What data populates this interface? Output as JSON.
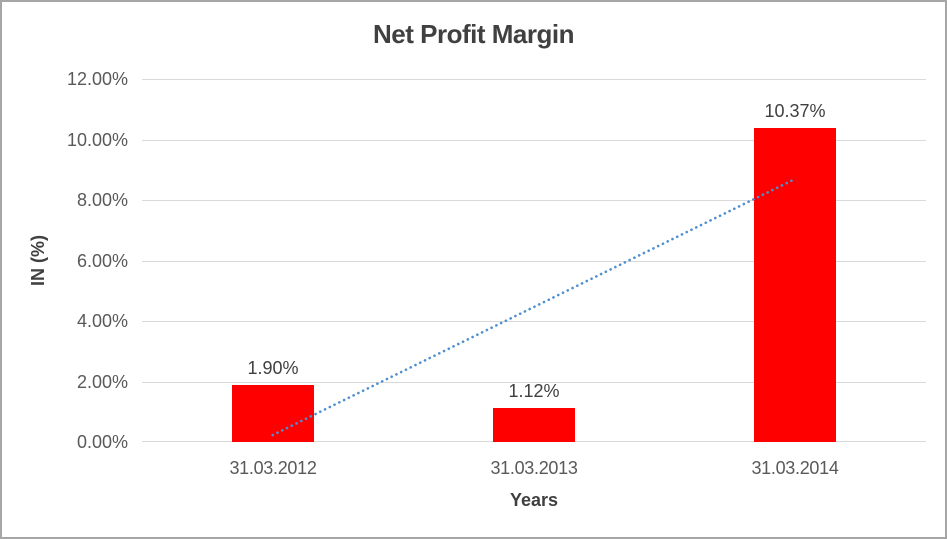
{
  "chart_data": {
    "type": "bar",
    "title": "Net Profit Margin",
    "categories": [
      "31.03.2012",
      "31.03.2013",
      "31.03.2014"
    ],
    "values": [
      1.9,
      1.12,
      10.37
    ],
    "value_labels": [
      "1.90%",
      "1.12%",
      "10.37%"
    ],
    "xlabel": "Years",
    "ylabel": "IN (%)",
    "ylim": [
      0,
      12
    ],
    "ytick_labels": [
      "0.00%",
      "2.00%",
      "4.00%",
      "6.00%",
      "8.00%",
      "10.00%",
      "12.00%"
    ],
    "grid": true,
    "legend": false,
    "bar_color": "#ff0000",
    "gridline_color": "#d9d9d9",
    "trendline": {
      "type": "linear",
      "style": "dotted",
      "color": "#4e8fd0",
      "start_value": 0.23,
      "end_value": 8.7
    }
  }
}
